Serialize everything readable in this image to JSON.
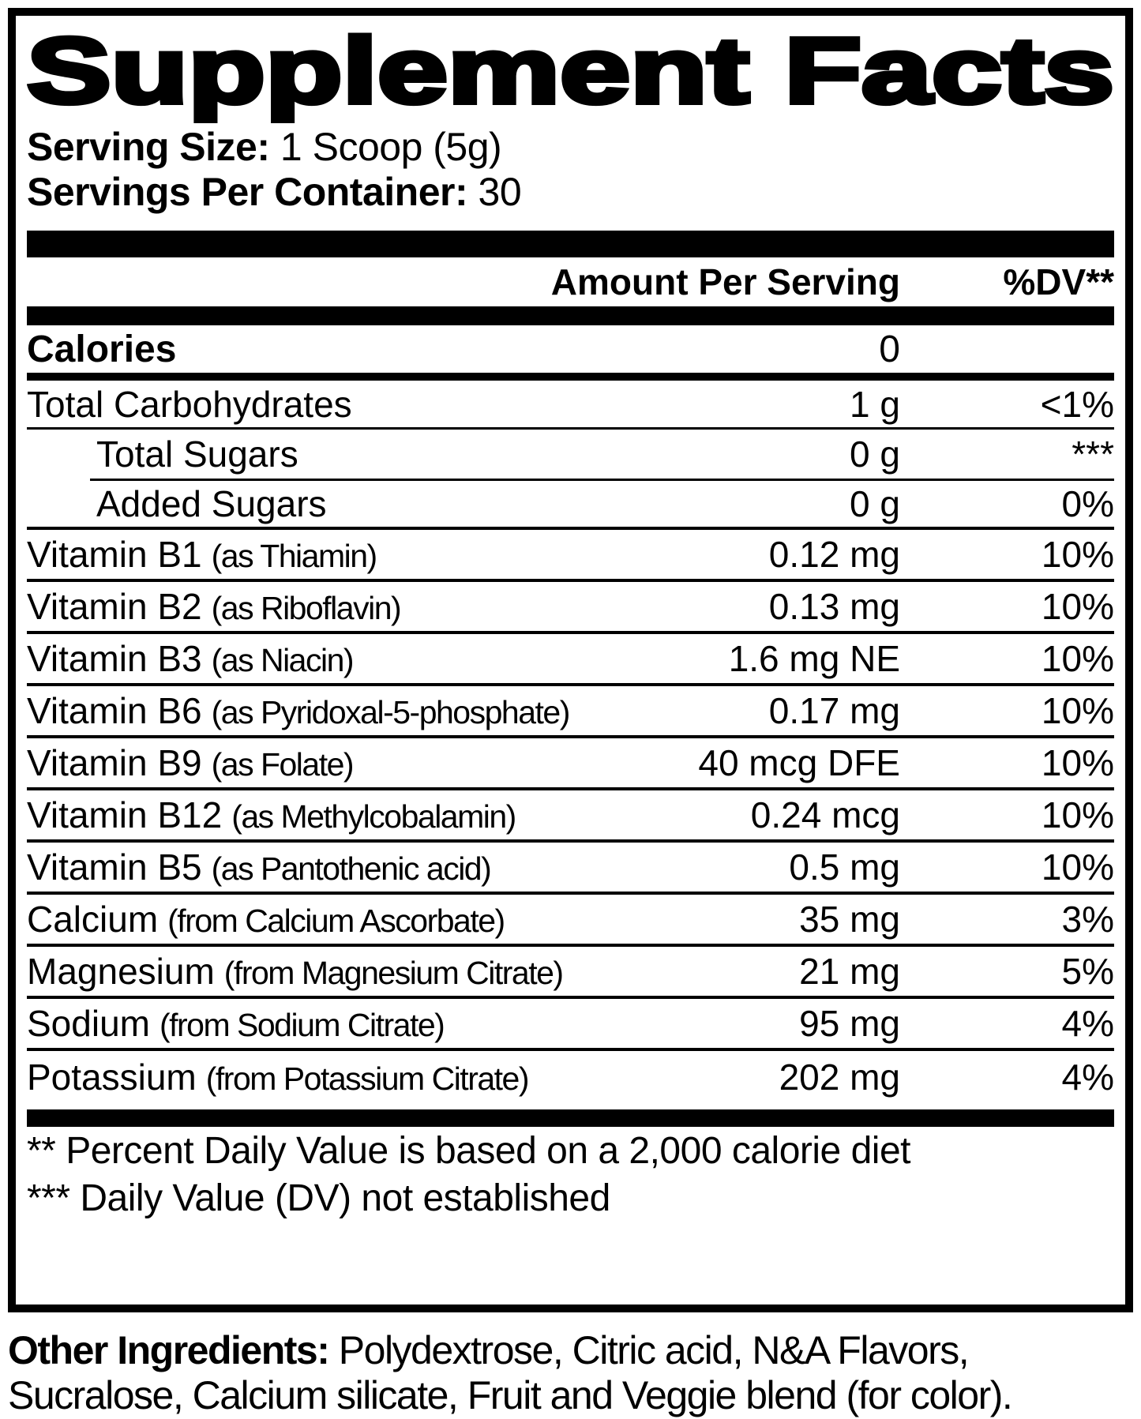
{
  "colors": {
    "ink": "#000000",
    "paper": "#ffffff"
  },
  "label": {
    "title": "Supplement Facts",
    "serving": {
      "size_label": "Serving Size:",
      "size_value": "1 Scoop (5g)",
      "count_label": "Servings Per Container:",
      "count_value": "30"
    },
    "columns": {
      "amount": "Amount Per Serving",
      "dv": "%DV**"
    },
    "calories": {
      "name": "Calories",
      "amount": "0"
    },
    "rows": [
      {
        "name": "Total Carbohydrates",
        "detail": "",
        "amount": "1 g",
        "dv": "<1%",
        "indent": false
      },
      {
        "name": "Total Sugars",
        "detail": "",
        "amount": "0 g",
        "dv": "***",
        "indent": true
      },
      {
        "name": "Added Sugars",
        "detail": "",
        "amount": "0 g",
        "dv": "0%",
        "indent": true
      },
      {
        "name": "Vitamin B1",
        "detail": "(as Thiamin)",
        "amount": "0.12 mg",
        "dv": "10%",
        "indent": false
      },
      {
        "name": "Vitamin B2",
        "detail": "(as Riboflavin)",
        "amount": "0.13 mg",
        "dv": "10%",
        "indent": false
      },
      {
        "name": "Vitamin B3",
        "detail": "(as Niacin)",
        "amount": "1.6 mg NE",
        "dv": "10%",
        "indent": false
      },
      {
        "name": "Vitamin B6",
        "detail": "(as Pyridoxal-5-phosphate)",
        "amount": "0.17 mg",
        "dv": "10%",
        "indent": false
      },
      {
        "name": "Vitamin B9",
        "detail": "(as Folate)",
        "amount": "40 mcg DFE",
        "dv": "10%",
        "indent": false
      },
      {
        "name": "Vitamin B12",
        "detail": "(as Methylcobalamin)",
        "amount": "0.24 mcg",
        "dv": "10%",
        "indent": false
      },
      {
        "name": "Vitamin B5",
        "detail": "(as Pantothenic acid)",
        "amount": "0.5 mg",
        "dv": "10%",
        "indent": false
      },
      {
        "name": "Calcium",
        "detail": "(from Calcium Ascorbate)",
        "amount": "35 mg",
        "dv": "3%",
        "indent": false
      },
      {
        "name": "Magnesium",
        "detail": "(from Magnesium Citrate)",
        "amount": "21 mg",
        "dv": "5%",
        "indent": false
      },
      {
        "name": "Sodium",
        "detail": "(from Sodium Citrate)",
        "amount": "95 mg",
        "dv": "4%",
        "indent": false
      },
      {
        "name": "Potassium",
        "detail": "(from Potassium Citrate)",
        "amount": "202 mg",
        "dv": "4%",
        "indent": false
      }
    ],
    "footnotes": [
      "** Percent Daily Value is based on a 2,000 calorie diet",
      "*** Daily Value (DV) not established"
    ],
    "other_ingredients": {
      "prefix": "Other Ingredients:",
      "line1_rest": "Polydextrose, Citric acid, N&A Flavors,",
      "line2": "Sucralose, Calcium silicate, Fruit and Veggie blend (for color)."
    }
  }
}
